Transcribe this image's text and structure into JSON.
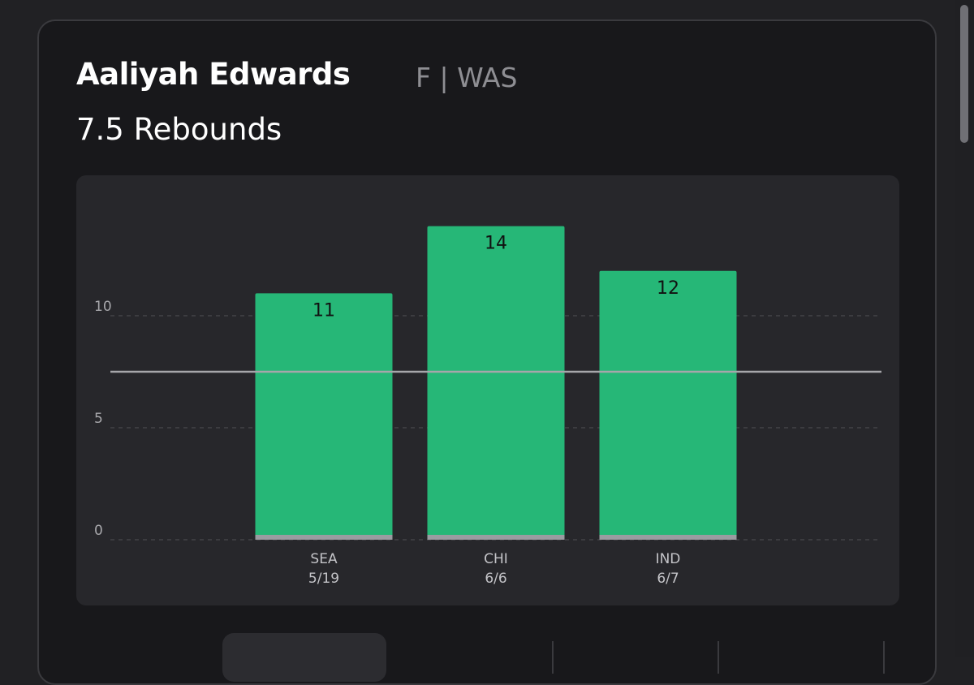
{
  "player": {
    "name": "Aaliyah Edwards",
    "position_team": "F | WAS"
  },
  "prop": {
    "label": "7.5 Rebounds"
  },
  "colors": {
    "bar": "#26b777",
    "bar_base": "#9a9ca1",
    "threshold_line": "#a6a6aa",
    "grid": "#4a4a4e"
  },
  "chart_data": {
    "type": "bar",
    "categories": [
      "SEA",
      "CHI",
      "IND"
    ],
    "category_dates": [
      "5/19",
      "6/6",
      "6/7"
    ],
    "values": [
      11,
      14,
      12
    ],
    "data_labels": [
      "11",
      "14",
      "12"
    ],
    "threshold": 7.5,
    "y_ticks": [
      0,
      5,
      10
    ],
    "ylim": [
      0,
      14.2
    ],
    "grid": true,
    "title": "",
    "xlabel": "",
    "ylabel": ""
  }
}
